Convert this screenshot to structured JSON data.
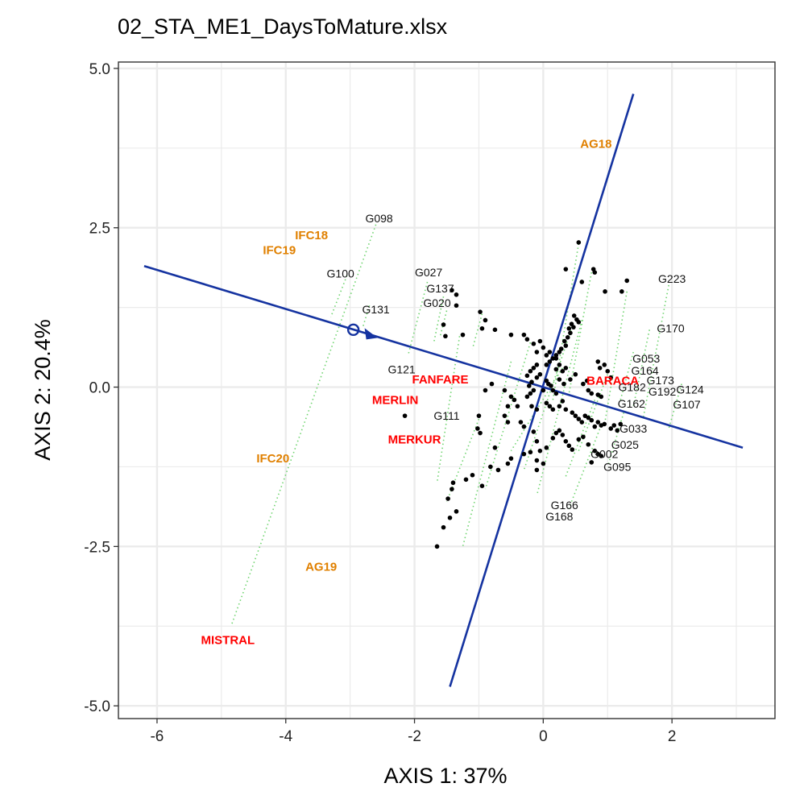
{
  "title": "02_STA_ME1_DaysToMature.xlsx",
  "chart_data": {
    "type": "scatter",
    "title": "02_STA_ME1_DaysToMature.xlsx",
    "xlabel": "AXIS 1: 37%",
    "ylabel": "AXIS 2: 20.4%",
    "xlim": [
      -6.6,
      3.6
    ],
    "ylim": [
      -5.2,
      5.1
    ],
    "x_ticks": [
      -6,
      -4,
      -2,
      0,
      2
    ],
    "x_tick_labels": [
      "-6",
      "-4",
      "-2",
      "0",
      "2"
    ],
    "y_ticks": [
      5.0,
      2.5,
      0.0,
      -2.5,
      -5.0
    ],
    "y_tick_labels": [
      "5.0",
      "2.5",
      "0.0",
      "-2.5",
      "-5.0"
    ],
    "grid": true,
    "colors": {
      "points": "#000000",
      "projection_lines": "#6fd46f",
      "axis_lines": "#1533a0",
      "site_labels": "#ff0000",
      "year_labels": "#e08000",
      "grid": "#ebebeb"
    },
    "axis_line_1": [
      [
        -6.2,
        1.9
      ],
      [
        3.1,
        -0.95
      ]
    ],
    "axis_line_2": [
      [
        -1.45,
        -4.7
      ],
      [
        1.4,
        4.6
      ]
    ],
    "average_environment_marker": [
      -2.95,
      0.9
    ],
    "genotype_points": [
      [
        0.55,
        2.27
      ],
      [
        0.35,
        1.85
      ],
      [
        0.78,
        1.85
      ],
      [
        0.8,
        1.8
      ],
      [
        1.3,
        1.67
      ],
      [
        1.22,
        1.5
      ],
      [
        0.96,
        1.5
      ],
      [
        0.6,
        1.65
      ],
      [
        -1.42,
        1.52
      ],
      [
        -1.35,
        1.45
      ],
      [
        -1.35,
        1.28
      ],
      [
        -0.98,
        1.18
      ],
      [
        -0.9,
        1.05
      ],
      [
        -0.95,
        0.92
      ],
      [
        -0.75,
        0.9
      ],
      [
        -1.55,
        0.98
      ],
      [
        -1.52,
        0.8
      ],
      [
        -1.25,
        0.82
      ],
      [
        -0.5,
        0.82
      ],
      [
        -0.3,
        0.82
      ],
      [
        -0.25,
        0.75
      ],
      [
        -0.15,
        0.68
      ],
      [
        0.48,
        1.12
      ],
      [
        0.52,
        1.06
      ],
      [
        0.55,
        1.02
      ],
      [
        0.44,
        0.99
      ],
      [
        0.47,
        0.94
      ],
      [
        0.4,
        0.92
      ],
      [
        0.42,
        0.85
      ],
      [
        0.38,
        0.78
      ],
      [
        0.33,
        0.72
      ],
      [
        0.35,
        0.65
      ],
      [
        0.28,
        0.6
      ],
      [
        0.25,
        0.55
      ],
      [
        0.2,
        0.5
      ],
      [
        0.15,
        0.45
      ],
      [
        0.1,
        0.4
      ],
      [
        0.05,
        0.35
      ],
      [
        0.0,
        0.62
      ],
      [
        -0.1,
        0.55
      ],
      [
        0.05,
        0.5
      ],
      [
        0.1,
        0.55
      ],
      [
        0.25,
        0.35
      ],
      [
        0.2,
        0.28
      ],
      [
        0.3,
        0.25
      ],
      [
        0.35,
        0.3
      ],
      [
        -0.1,
        0.35
      ],
      [
        -0.15,
        0.3
      ],
      [
        -0.05,
        0.2
      ],
      [
        -0.1,
        0.15
      ],
      [
        -0.2,
        0.25
      ],
      [
        -0.25,
        0.18
      ],
      [
        -0.18,
        0.08
      ],
      [
        -0.22,
        0.02
      ],
      [
        0.05,
        0.1
      ],
      [
        0.08,
        0.05
      ],
      [
        0.12,
        0.02
      ],
      [
        0.15,
        -0.05
      ],
      [
        0.2,
        -0.1
      ],
      [
        -0.15,
        -0.05
      ],
      [
        -0.2,
        -0.1
      ],
      [
        -0.25,
        -0.15
      ],
      [
        -0.18,
        -0.3
      ],
      [
        -0.1,
        -0.35
      ],
      [
        0.05,
        -0.25
      ],
      [
        0.1,
        -0.3
      ],
      [
        0.15,
        -0.35
      ],
      [
        0.25,
        -0.3
      ],
      [
        0.3,
        -0.22
      ],
      [
        0.35,
        -0.35
      ],
      [
        0.45,
        -0.4
      ],
      [
        0.5,
        -0.45
      ],
      [
        0.55,
        -0.5
      ],
      [
        0.6,
        -0.55
      ],
      [
        0.65,
        -0.45
      ],
      [
        0.7,
        -0.48
      ],
      [
        0.75,
        -0.52
      ],
      [
        0.8,
        -0.62
      ],
      [
        0.85,
        -0.55
      ],
      [
        0.9,
        -0.6
      ],
      [
        0.95,
        -0.58
      ],
      [
        1.05,
        -0.65
      ],
      [
        1.1,
        -0.6
      ],
      [
        1.2,
        -0.58
      ],
      [
        1.15,
        -0.68
      ],
      [
        0.85,
        0.4
      ],
      [
        0.95,
        0.35
      ],
      [
        1.0,
        0.25
      ],
      [
        1.05,
        0.15
      ],
      [
        0.88,
        0.3
      ],
      [
        0.68,
        0.1
      ],
      [
        0.62,
        0.05
      ],
      [
        0.7,
        -0.05
      ],
      [
        0.75,
        -0.1
      ],
      [
        0.85,
        -0.12
      ],
      [
        0.9,
        -0.15
      ],
      [
        -0.9,
        -0.05
      ],
      [
        -0.8,
        0.05
      ],
      [
        -0.6,
        -0.05
      ],
      [
        -0.5,
        -0.15
      ],
      [
        -0.55,
        -0.3
      ],
      [
        -0.6,
        -0.45
      ],
      [
        -0.55,
        -0.55
      ],
      [
        -1.0,
        -0.45
      ],
      [
        -1.02,
        -0.65
      ],
      [
        -0.98,
        -0.72
      ],
      [
        -0.35,
        -0.55
      ],
      [
        -0.3,
        -0.62
      ],
      [
        -0.15,
        -0.7
      ],
      [
        -0.1,
        -0.85
      ],
      [
        -0.05,
        -1.0
      ],
      [
        0.0,
        -1.2
      ],
      [
        -0.1,
        -1.15
      ],
      [
        0.05,
        -0.95
      ],
      [
        0.15,
        -0.8
      ],
      [
        0.2,
        -0.72
      ],
      [
        0.25,
        -0.68
      ],
      [
        0.3,
        -0.75
      ],
      [
        0.35,
        -0.85
      ],
      [
        0.4,
        -0.92
      ],
      [
        0.45,
        -0.98
      ],
      [
        0.55,
        -0.82
      ],
      [
        0.62,
        -0.78
      ],
      [
        0.7,
        -0.9
      ],
      [
        0.8,
        -1.0
      ],
      [
        0.85,
        -1.05
      ],
      [
        0.9,
        -1.08
      ],
      [
        0.75,
        -1.18
      ],
      [
        -0.2,
        -1.02
      ],
      [
        -0.3,
        -1.05
      ],
      [
        -0.1,
        -1.3
      ],
      [
        -0.75,
        -0.95
      ],
      [
        -0.82,
        -1.25
      ],
      [
        -0.7,
        -1.3
      ],
      [
        -0.95,
        -1.55
      ],
      [
        -1.2,
        -1.45
      ],
      [
        -1.4,
        -1.5
      ],
      [
        -1.42,
        -1.6
      ],
      [
        -1.48,
        -1.75
      ],
      [
        -0.5,
        -1.12
      ],
      [
        -0.55,
        -1.2
      ],
      [
        -0.4,
        -0.3
      ],
      [
        -0.45,
        -0.2
      ],
      [
        -1.1,
        -1.38
      ],
      [
        -1.35,
        -1.95
      ],
      [
        -1.45,
        -2.05
      ],
      [
        -1.55,
        -2.2
      ],
      [
        -1.65,
        -2.5
      ],
      [
        -2.15,
        -0.45
      ],
      [
        -0.05,
        0.72
      ],
      [
        0.2,
        0.45
      ],
      [
        0.25,
        0.12
      ],
      [
        0.32,
        0.05
      ],
      [
        0.0,
        -0.05
      ],
      [
        0.42,
        0.12
      ],
      [
        0.5,
        0.2
      ]
    ],
    "projection_lines": [
      [
        [
          -2.6,
          2.55
        ],
        [
          -4.85,
          -3.75
        ]
      ],
      [
        [
          -3.05,
          1.75
        ],
        [
          -3.3,
          1.1
        ]
      ],
      [
        [
          -2.7,
          1.28
        ],
        [
          -2.8,
          0.95
        ]
      ],
      [
        [
          -1.8,
          1.65
        ],
        [
          -2.1,
          0.5
        ]
      ],
      [
        [
          -1.55,
          1.42
        ],
        [
          -1.7,
          0.7
        ]
      ],
      [
        [
          -1.5,
          1.2
        ],
        [
          -1.6,
          0.8
        ]
      ],
      [
        [
          -0.95,
          1.15
        ],
        [
          -1.1,
          0.6
        ]
      ],
      [
        [
          1.95,
          1.6
        ],
        [
          1.55,
          -0.5
        ]
      ],
      [
        [
          1.65,
          0.9
        ],
        [
          1.4,
          -0.3
        ]
      ],
      [
        [
          1.4,
          0.55
        ],
        [
          1.2,
          -0.2
        ]
      ],
      [
        [
          2.15,
          0.05
        ],
        [
          1.95,
          -0.65
        ]
      ],
      [
        [
          1.25,
          -0.4
        ],
        [
          1.0,
          -1.25
        ]
      ],
      [
        [
          1.3,
          1.5
        ],
        [
          0.95,
          -0.6
        ]
      ],
      [
        [
          0.55,
          2.25
        ],
        [
          0.15,
          -0.2
        ]
      ],
      [
        [
          0.75,
          1.8
        ],
        [
          0.4,
          -0.1
        ]
      ],
      [
        [
          0.6,
          1.05
        ],
        [
          -0.1,
          -1.7
        ]
      ],
      [
        [
          0.9,
          -0.6
        ],
        [
          0.4,
          -1.9
        ]
      ],
      [
        [
          -1.0,
          -0.5
        ],
        [
          -1.5,
          -1.8
        ]
      ],
      [
        [
          -1.3,
          0.8
        ],
        [
          -1.65,
          -1.5
        ]
      ],
      [
        [
          -0.5,
          0.4
        ],
        [
          -1.25,
          -2.5
        ]
      ],
      [
        [
          -0.2,
          0.7
        ],
        [
          -0.9,
          -1.6
        ]
      ],
      [
        [
          0.45,
          0.95
        ],
        [
          -0.3,
          -1.3
        ]
      ],
      [
        [
          0.3,
          0.3
        ],
        [
          -0.5,
          -1.0
        ]
      ],
      [
        [
          0.8,
          -0.2
        ],
        [
          0.35,
          -1.4
        ]
      ],
      [
        [
          1.0,
          0.2
        ],
        [
          0.55,
          -1.0
        ]
      ]
    ],
    "genotype_labels": [
      {
        "text": "G098",
        "x": -2.55,
        "y": 2.65
      },
      {
        "text": "G100",
        "x": -3.15,
        "y": 1.78
      },
      {
        "text": "G131",
        "x": -2.6,
        "y": 1.22
      },
      {
        "text": "G027",
        "x": -1.78,
        "y": 1.8
      },
      {
        "text": "G137",
        "x": -1.6,
        "y": 1.55
      },
      {
        "text": "G020",
        "x": -1.65,
        "y": 1.32
      },
      {
        "text": "G121",
        "x": -2.2,
        "y": 0.28
      },
      {
        "text": "G111",
        "x": -1.5,
        "y": -0.45
      },
      {
        "text": "G223",
        "x": 2.0,
        "y": 1.7
      },
      {
        "text": "G170",
        "x": 1.98,
        "y": 0.92
      },
      {
        "text": "G053",
        "x": 1.6,
        "y": 0.45
      },
      {
        "text": "G164",
        "x": 1.58,
        "y": 0.26
      },
      {
        "text": "G173",
        "x": 1.82,
        "y": 0.11
      },
      {
        "text": "G192",
        "x": 1.85,
        "y": -0.07
      },
      {
        "text": "G124",
        "x": 2.28,
        "y": -0.04
      },
      {
        "text": "G107",
        "x": 2.23,
        "y": -0.27
      },
      {
        "text": "G162",
        "x": 1.37,
        "y": -0.26
      },
      {
        "text": "G033",
        "x": 1.4,
        "y": -0.65
      },
      {
        "text": "G025",
        "x": 1.27,
        "y": -0.9
      },
      {
        "text": "G002",
        "x": 0.95,
        "y": -1.05
      },
      {
        "text": "G095",
        "x": 1.15,
        "y": -1.25
      },
      {
        "text": "G166",
        "x": 0.33,
        "y": -1.85
      },
      {
        "text": "G168",
        "x": 0.25,
        "y": -2.03
      },
      {
        "text": "G182",
        "x": 1.38,
        "y": 0.0
      }
    ],
    "environment_labels": [
      {
        "text": "AG18",
        "x": 0.82,
        "y": 3.82,
        "group": "year"
      },
      {
        "text": "IFC18",
        "x": -3.6,
        "y": 2.38,
        "group": "year"
      },
      {
        "text": "IFC19",
        "x": -4.1,
        "y": 2.15,
        "group": "year"
      },
      {
        "text": "IFC20",
        "x": -4.2,
        "y": -1.12,
        "group": "year"
      },
      {
        "text": "AG19",
        "x": -3.45,
        "y": -2.82,
        "group": "year"
      },
      {
        "text": "FANFARE",
        "x": -1.6,
        "y": 0.12,
        "group": "site"
      },
      {
        "text": "MERLIN",
        "x": -2.3,
        "y": -0.2,
        "group": "site"
      },
      {
        "text": "MERKUR",
        "x": -2.0,
        "y": -0.82,
        "group": "site"
      },
      {
        "text": "BARACA",
        "x": 1.08,
        "y": 0.1,
        "group": "site"
      },
      {
        "text": "MISTRAL",
        "x": -4.9,
        "y": -3.97,
        "group": "site"
      }
    ]
  }
}
